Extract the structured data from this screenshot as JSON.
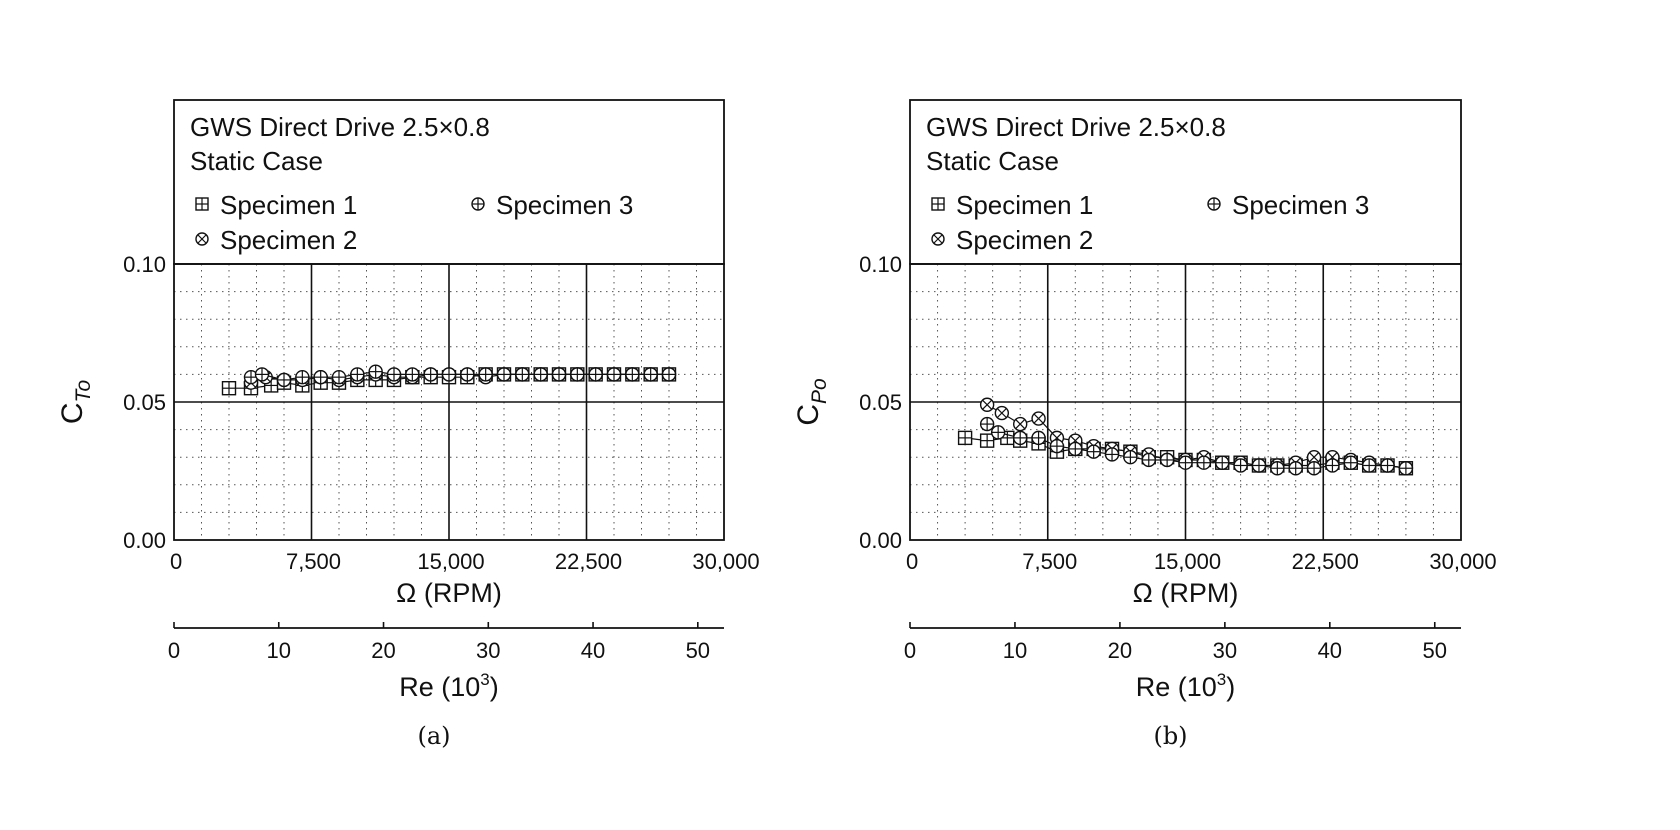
{
  "chart_data": [
    {
      "type": "line",
      "panel_label": "(a)",
      "legend_title": [
        "GWS Direct Drive 2.5×0.8",
        "Static Case"
      ],
      "legend_placement": "top (box above plot area)",
      "xlabel": "Ω (RPM)",
      "ylabel_main": "C",
      "ylabel_sub": "To",
      "secondary_xlabel_main": "Re (10",
      "secondary_xlabel_sup": "3",
      "secondary_xlabel_tail": ")",
      "xlim": [
        0,
        30000
      ],
      "ylim": [
        0,
        0.1
      ],
      "secondary_xlim": [
        0,
        52.5
      ],
      "xticks": [
        0,
        7500,
        15000,
        22500,
        30000
      ],
      "xtick_labels": [
        "0",
        "7,500",
        "15,000",
        "22,500",
        "30,000"
      ],
      "yticks": [
        0,
        0.05,
        0.1
      ],
      "ytick_labels": [
        "0.00",
        "0.05",
        "0.10"
      ],
      "secondary_xticks": [
        0,
        10,
        20,
        30,
        40,
        50
      ],
      "secondary_xtick_labels": [
        "0",
        "10",
        "20",
        "30",
        "40",
        "50"
      ],
      "grid": true,
      "series": [
        {
          "name": "Specimen 1",
          "marker": "boxplus",
          "x": [
            3000,
            4200,
            5300,
            6000,
            7000,
            8000,
            9000,
            10000,
            11000,
            12000,
            13000,
            14000,
            15000,
            16000,
            17000,
            18000,
            19000,
            20000,
            21000,
            22000,
            23000,
            24000,
            25000,
            26000,
            27000
          ],
          "y": [
            0.055,
            0.055,
            0.056,
            0.057,
            0.056,
            0.057,
            0.057,
            0.058,
            0.058,
            0.058,
            0.059,
            0.059,
            0.059,
            0.059,
            0.06,
            0.06,
            0.06,
            0.06,
            0.06,
            0.06,
            0.06,
            0.06,
            0.06,
            0.06,
            0.06
          ]
        },
        {
          "name": "Specimen 2",
          "marker": "otimes",
          "x": [
            4200,
            5000,
            6000,
            7000,
            8000,
            9000,
            10000,
            11000,
            12000,
            13000,
            14000,
            15000,
            16000,
            17000,
            18000,
            19000,
            20000,
            21000,
            22000,
            23000,
            24000,
            25000,
            26000,
            27000
          ],
          "y": [
            0.057,
            0.059,
            0.058,
            0.058,
            0.059,
            0.058,
            0.059,
            0.06,
            0.059,
            0.059,
            0.06,
            0.06,
            0.06,
            0.059,
            0.06,
            0.06,
            0.06,
            0.06,
            0.06,
            0.06,
            0.06,
            0.06,
            0.06,
            0.06
          ]
        },
        {
          "name": "Specimen 3",
          "marker": "oplus",
          "x": [
            4200,
            4800,
            6000,
            7000,
            8000,
            9000,
            10000,
            11000,
            12000,
            13000,
            14000,
            15000,
            16000,
            17000,
            18000,
            19000,
            20000,
            21000,
            22000,
            23000,
            24000,
            25000,
            26000,
            27000
          ],
          "y": [
            0.059,
            0.06,
            0.058,
            0.059,
            0.059,
            0.059,
            0.06,
            0.061,
            0.06,
            0.06,
            0.06,
            0.06,
            0.06,
            0.06,
            0.06,
            0.06,
            0.06,
            0.06,
            0.06,
            0.06,
            0.06,
            0.06,
            0.06,
            0.06
          ]
        }
      ]
    },
    {
      "type": "line",
      "panel_label": "(b)",
      "legend_title": [
        "GWS Direct Drive 2.5×0.8",
        "Static Case"
      ],
      "legend_placement": "top (box above plot area)",
      "xlabel": "Ω (RPM)",
      "ylabel_main": "C",
      "ylabel_sub": "Po",
      "secondary_xlabel_main": "Re (10",
      "secondary_xlabel_sup": "3",
      "secondary_xlabel_tail": ")",
      "xlim": [
        0,
        30000
      ],
      "ylim": [
        0,
        0.1
      ],
      "secondary_xlim": [
        0,
        52.5
      ],
      "xticks": [
        0,
        7500,
        15000,
        22500,
        30000
      ],
      "xtick_labels": [
        "0",
        "7,500",
        "15,000",
        "22,500",
        "30,000"
      ],
      "yticks": [
        0,
        0.05,
        0.1
      ],
      "ytick_labels": [
        "0.00",
        "0.05",
        "0.10"
      ],
      "secondary_xticks": [
        0,
        10,
        20,
        30,
        40,
        50
      ],
      "secondary_xtick_labels": [
        "0",
        "10",
        "20",
        "30",
        "40",
        "50"
      ],
      "grid": true,
      "series": [
        {
          "name": "Specimen 1",
          "marker": "boxplus",
          "x": [
            3000,
            4200,
            5300,
            6000,
            7000,
            8000,
            9000,
            10000,
            11000,
            12000,
            13000,
            14000,
            15000,
            16000,
            17000,
            18000,
            19000,
            20000,
            21000,
            22000,
            23000,
            24000,
            25000,
            26000,
            27000
          ],
          "y": [
            0.037,
            0.036,
            0.037,
            0.036,
            0.035,
            0.032,
            0.033,
            0.033,
            0.033,
            0.032,
            0.03,
            0.03,
            0.029,
            0.029,
            0.028,
            0.028,
            0.027,
            0.027,
            0.027,
            0.027,
            0.028,
            0.028,
            0.027,
            0.027,
            0.026
          ]
        },
        {
          "name": "Specimen 2",
          "marker": "otimes",
          "x": [
            4200,
            5000,
            6000,
            7000,
            8000,
            9000,
            10000,
            11000,
            12000,
            13000,
            14000,
            15000,
            16000,
            17000,
            18000,
            19000,
            20000,
            21000,
            22000,
            23000,
            24000,
            25000,
            26000,
            27000
          ],
          "y": [
            0.049,
            0.046,
            0.042,
            0.044,
            0.037,
            0.036,
            0.034,
            0.033,
            0.032,
            0.031,
            0.029,
            0.029,
            0.03,
            0.028,
            0.028,
            0.027,
            0.027,
            0.028,
            0.03,
            0.03,
            0.029,
            0.028,
            0.027,
            0.026
          ]
        },
        {
          "name": "Specimen 3",
          "marker": "oplus",
          "x": [
            4200,
            4800,
            6000,
            7000,
            8000,
            9000,
            10000,
            11000,
            12000,
            13000,
            14000,
            15000,
            16000,
            17000,
            18000,
            19000,
            20000,
            21000,
            22000,
            23000,
            24000,
            25000,
            26000,
            27000
          ],
          "y": [
            0.042,
            0.039,
            0.037,
            0.037,
            0.034,
            0.033,
            0.032,
            0.031,
            0.03,
            0.029,
            0.029,
            0.028,
            0.028,
            0.028,
            0.027,
            0.027,
            0.026,
            0.026,
            0.026,
            0.027,
            0.028,
            0.027,
            0.027,
            0.026
          ]
        }
      ]
    }
  ]
}
